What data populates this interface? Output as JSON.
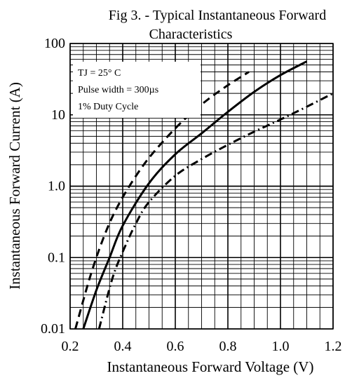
{
  "chart_data": {
    "type": "line",
    "title": "Fig 3. -  Typical Instantaneous Forward Characteristics",
    "title_lines": [
      "Fig 3. -  Typical Instantaneous Forward",
      "Characteristics"
    ],
    "xlabel": "Instantaneous Forward Voltage (V)",
    "ylabel": "Instantaneous Forward Current (A)",
    "xlim": [
      0.2,
      1.2
    ],
    "ylim": [
      0.01,
      100
    ],
    "yscale": "log",
    "grid": true,
    "x_ticks": [
      {
        "value": 0.2,
        "label": "0.2"
      },
      {
        "value": 0.4,
        "label": "0.4"
      },
      {
        "value": 0.6,
        "label": "0.6"
      },
      {
        "value": 0.8,
        "label": "0.8"
      },
      {
        "value": 1.0,
        "label": "1.0"
      },
      {
        "value": 1.2,
        "label": "1.2"
      }
    ],
    "y_ticks": [
      {
        "value": 0.01,
        "label": "0.01"
      },
      {
        "value": 0.1,
        "label": "0.1"
      },
      {
        "value": 1,
        "label": "1.0"
      },
      {
        "value": 10,
        "label": "10"
      },
      {
        "value": 100,
        "label": "100"
      }
    ],
    "annotations": [
      "TJ = 25° C",
      "Pulse width = 300µs",
      "1% Duty Cycle"
    ],
    "series": [
      {
        "style": "dashed",
        "x": [
          0.22,
          0.28,
          0.34,
          0.4,
          0.48,
          0.56,
          0.64,
          0.72,
          0.8,
          0.88
        ],
        "y": [
          0.01,
          0.06,
          0.25,
          0.7,
          2.0,
          4.5,
          9.0,
          16,
          26,
          40
        ]
      },
      {
        "style": "solid",
        "x": [
          0.25,
          0.3,
          0.35,
          0.4,
          0.5,
          0.6,
          0.7,
          0.8,
          0.9,
          1.0,
          1.1
        ],
        "y": [
          0.01,
          0.035,
          0.1,
          0.28,
          1.1,
          2.8,
          5.5,
          11,
          21,
          36,
          56
        ]
      },
      {
        "style": "dash-dot",
        "x": [
          0.31,
          0.36,
          0.4,
          0.45,
          0.5,
          0.6,
          0.7,
          0.8,
          0.9,
          1.0,
          1.1,
          1.2
        ],
        "y": [
          0.01,
          0.05,
          0.12,
          0.3,
          0.6,
          1.4,
          2.4,
          3.8,
          5.8,
          8.6,
          13,
          20
        ]
      }
    ]
  }
}
